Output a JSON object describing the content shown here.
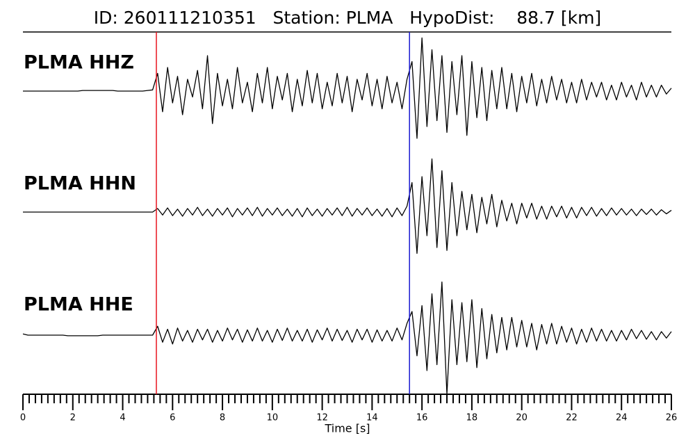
{
  "chart_data": {
    "type": "seismogram",
    "title": "ID: 260111210351   Station: PLMA   HypoDist:    88.7 [km]",
    "xlabel": "Time [s]",
    "xlim": [
      0,
      26
    ],
    "xticks": [
      0,
      2,
      4,
      6,
      8,
      10,
      12,
      14,
      16,
      18,
      20,
      22,
      24,
      26
    ],
    "xminorticks": [
      0.25,
      0.5,
      0.75,
      1,
      1.25,
      1.5,
      1.75,
      2.25,
      2.5,
      2.75,
      3,
      3.25,
      3.5,
      3.75,
      4.25,
      4.5,
      4.75,
      5,
      5.25,
      5.5,
      5.75,
      6.25,
      6.5,
      6.75,
      7,
      7.25,
      7.5,
      7.75,
      8.25,
      8.5,
      8.75,
      9,
      9.25,
      9.5,
      9.75,
      10.25,
      10.5,
      10.75,
      11,
      11.25,
      11.5,
      11.75,
      12.25,
      12.5,
      12.75,
      13,
      13.25,
      13.5,
      13.75,
      14.25,
      14.5,
      14.75,
      15,
      15.25,
      15.5,
      15.75,
      16.25,
      16.5,
      16.75,
      17,
      17.25,
      17.5,
      17.75,
      18.25,
      18.5,
      18.75,
      19,
      19.25,
      19.5,
      19.75,
      20.25,
      20.5,
      20.75,
      21,
      21.25,
      21.5,
      21.75,
      22.25,
      22.5,
      22.75,
      23,
      23.25,
      23.5,
      23.75,
      24.25,
      24.5,
      24.75,
      25,
      25.25,
      25.5,
      25.75
    ],
    "ylim": [
      -1,
      1
    ],
    "markers": [
      {
        "x": 5.35,
        "color": "#e8141e"
      },
      {
        "x": 15.5,
        "color": "#1a1ad0"
      }
    ],
    "label_color": "#4a9a0a",
    "x": [
      0,
      0.2,
      0.4,
      0.6,
      0.8,
      1,
      1.2,
      1.4,
      1.6,
      1.8,
      2,
      2.2,
      2.4,
      2.6,
      2.8,
      3,
      3.2,
      3.4,
      3.6,
      3.8,
      4,
      4.2,
      4.4,
      4.6,
      4.8,
      5,
      5.2,
      5.4,
      5.6,
      5.8,
      6,
      6.2,
      6.4,
      6.6,
      6.8,
      7,
      7.2,
      7.4,
      7.6,
      7.8,
      8,
      8.2,
      8.4,
      8.6,
      8.8,
      9,
      9.2,
      9.4,
      9.6,
      9.8,
      10,
      10.2,
      10.4,
      10.6,
      10.8,
      11,
      11.2,
      11.4,
      11.6,
      11.8,
      12,
      12.2,
      12.4,
      12.6,
      12.8,
      13,
      13.2,
      13.4,
      13.6,
      13.8,
      14,
      14.2,
      14.4,
      14.6,
      14.8,
      15,
      15.2,
      15.4,
      15.6,
      15.8,
      16,
      16.2,
      16.4,
      16.6,
      16.8,
      17,
      17.2,
      17.4,
      17.6,
      17.8,
      18,
      18.2,
      18.4,
      18.6,
      18.8,
      19,
      19.2,
      19.4,
      19.6,
      19.8,
      20,
      20.2,
      20.4,
      20.6,
      20.8,
      21,
      21.2,
      21.4,
      21.6,
      21.8,
      22,
      22.2,
      22.4,
      22.6,
      22.8,
      23,
      23.2,
      23.4,
      23.6,
      23.8,
      24,
      24.2,
      24.4,
      24.6,
      24.8,
      25,
      25.2,
      25.4,
      25.6,
      25.8,
      26
    ],
    "series": [
      {
        "name": "PLMA HHZ",
        "color": "#000000",
        "values": [
          0,
          0,
          0,
          0,
          0,
          0,
          0,
          0,
          0,
          0,
          0,
          0,
          0.01,
          0.01,
          0.01,
          0.01,
          0.01,
          0.01,
          0.01,
          0,
          0,
          0,
          0,
          0,
          0,
          0.01,
          0.02,
          0.3,
          -0.35,
          0.4,
          -0.2,
          0.25,
          -0.4,
          0.2,
          -0.1,
          0.35,
          -0.3,
          0.6,
          -0.55,
          0.3,
          -0.25,
          0.2,
          -0.3,
          0.4,
          -0.2,
          0.15,
          -0.35,
          0.3,
          -0.2,
          0.4,
          -0.3,
          0.25,
          -0.15,
          0.3,
          -0.35,
          0.2,
          -0.25,
          0.35,
          -0.2,
          0.3,
          -0.3,
          0.15,
          -0.25,
          0.3,
          -0.2,
          0.25,
          -0.35,
          0.2,
          -0.15,
          0.3,
          -0.25,
          0.2,
          -0.3,
          0.25,
          -0.2,
          0.15,
          -0.3,
          0.2,
          0.5,
          -0.8,
          0.9,
          -0.6,
          0.7,
          -0.5,
          0.6,
          -0.7,
          0.5,
          -0.4,
          0.6,
          -0.75,
          0.5,
          -0.45,
          0.4,
          -0.5,
          0.35,
          -0.3,
          0.4,
          -0.3,
          0.3,
          -0.35,
          0.25,
          -0.2,
          0.3,
          -0.25,
          0.2,
          -0.2,
          0.25,
          -0.15,
          0.2,
          -0.2,
          0.15,
          -0.2,
          0.2,
          -0.15,
          0.15,
          -0.1,
          0.15,
          -0.15,
          0.1,
          -0.15,
          0.15,
          -0.1,
          0.1,
          -0.15,
          0.15,
          -0.1,
          0.1,
          -0.1,
          0.1,
          -0.05,
          0.05
        ]
      },
      {
        "name": "PLMA HHN",
        "color": "#000000",
        "values": [
          0,
          0,
          0,
          0,
          0,
          0,
          0,
          0,
          0,
          0,
          0,
          0,
          0,
          0,
          0,
          0,
          0,
          0,
          0,
          0,
          0,
          0,
          0,
          0,
          0,
          0,
          0,
          0.06,
          -0.05,
          0.07,
          -0.06,
          0.05,
          -0.07,
          0.06,
          -0.05,
          0.08,
          -0.06,
          0.05,
          -0.07,
          0.06,
          -0.05,
          0.07,
          -0.08,
          0.06,
          -0.05,
          0.07,
          -0.06,
          0.08,
          -0.07,
          0.06,
          -0.05,
          0.07,
          -0.06,
          0.05,
          -0.07,
          0.06,
          -0.08,
          0.07,
          -0.06,
          0.05,
          -0.07,
          0.06,
          -0.05,
          0.07,
          -0.06,
          0.08,
          -0.07,
          0.06,
          -0.05,
          0.07,
          -0.06,
          0.05,
          -0.07,
          0.06,
          -0.08,
          0.07,
          -0.06,
          0.1,
          0.5,
          -0.7,
          0.6,
          -0.4,
          0.9,
          -0.6,
          0.7,
          -0.65,
          0.5,
          -0.4,
          0.35,
          -0.3,
          0.3,
          -0.35,
          0.25,
          -0.2,
          0.3,
          -0.25,
          0.2,
          -0.15,
          0.15,
          -0.2,
          0.15,
          -0.1,
          0.15,
          -0.12,
          0.1,
          -0.12,
          0.1,
          -0.08,
          0.1,
          -0.1,
          0.08,
          -0.1,
          0.08,
          -0.06,
          0.08,
          -0.07,
          0.06,
          -0.06,
          0.07,
          -0.05,
          0.06,
          -0.05,
          0.05,
          -0.06,
          0.05,
          -0.04,
          0.05,
          -0.05,
          0.04,
          -0.03,
          0.03
        ]
      },
      {
        "name": "PLMA HHE",
        "color": "#000000",
        "values": [
          0.02,
          0,
          0,
          0,
          0,
          0,
          0,
          0,
          0,
          -0.01,
          -0.01,
          -0.01,
          -0.01,
          -0.01,
          -0.01,
          -0.01,
          0,
          0,
          0,
          0,
          0,
          0,
          0,
          0,
          0,
          0,
          0,
          0.15,
          -0.12,
          0.1,
          -0.15,
          0.12,
          -0.1,
          0.08,
          -0.12,
          0.1,
          -0.08,
          0.1,
          -0.12,
          0.08,
          -0.1,
          0.12,
          -0.08,
          0.1,
          -0.12,
          0.09,
          -0.1,
          0.12,
          -0.1,
          0.08,
          -0.12,
          0.1,
          -0.09,
          0.12,
          -0.1,
          0.08,
          -0.1,
          0.1,
          -0.12,
          0.09,
          -0.08,
          0.12,
          -0.1,
          0.1,
          -0.09,
          0.08,
          -0.12,
          0.1,
          -0.08,
          0.1,
          -0.12,
          0.09,
          -0.1,
          0.08,
          -0.1,
          0.12,
          -0.08,
          0.2,
          0.4,
          -0.35,
          0.5,
          -0.6,
          0.7,
          -0.5,
          0.9,
          -1.0,
          0.6,
          -0.5,
          0.55,
          -0.45,
          0.6,
          -0.55,
          0.45,
          -0.4,
          0.35,
          -0.3,
          0.3,
          -0.25,
          0.3,
          -0.2,
          0.25,
          -0.2,
          0.2,
          -0.25,
          0.18,
          -0.15,
          0.2,
          -0.15,
          0.15,
          -0.12,
          0.12,
          -0.15,
          0.1,
          -0.12,
          0.12,
          -0.1,
          0.1,
          -0.1,
          0.08,
          -0.1,
          0.08,
          -0.08,
          0.1,
          -0.06,
          0.08,
          -0.07,
          0.06,
          -0.08,
          0.06,
          -0.05,
          0.06
        ]
      }
    ]
  }
}
